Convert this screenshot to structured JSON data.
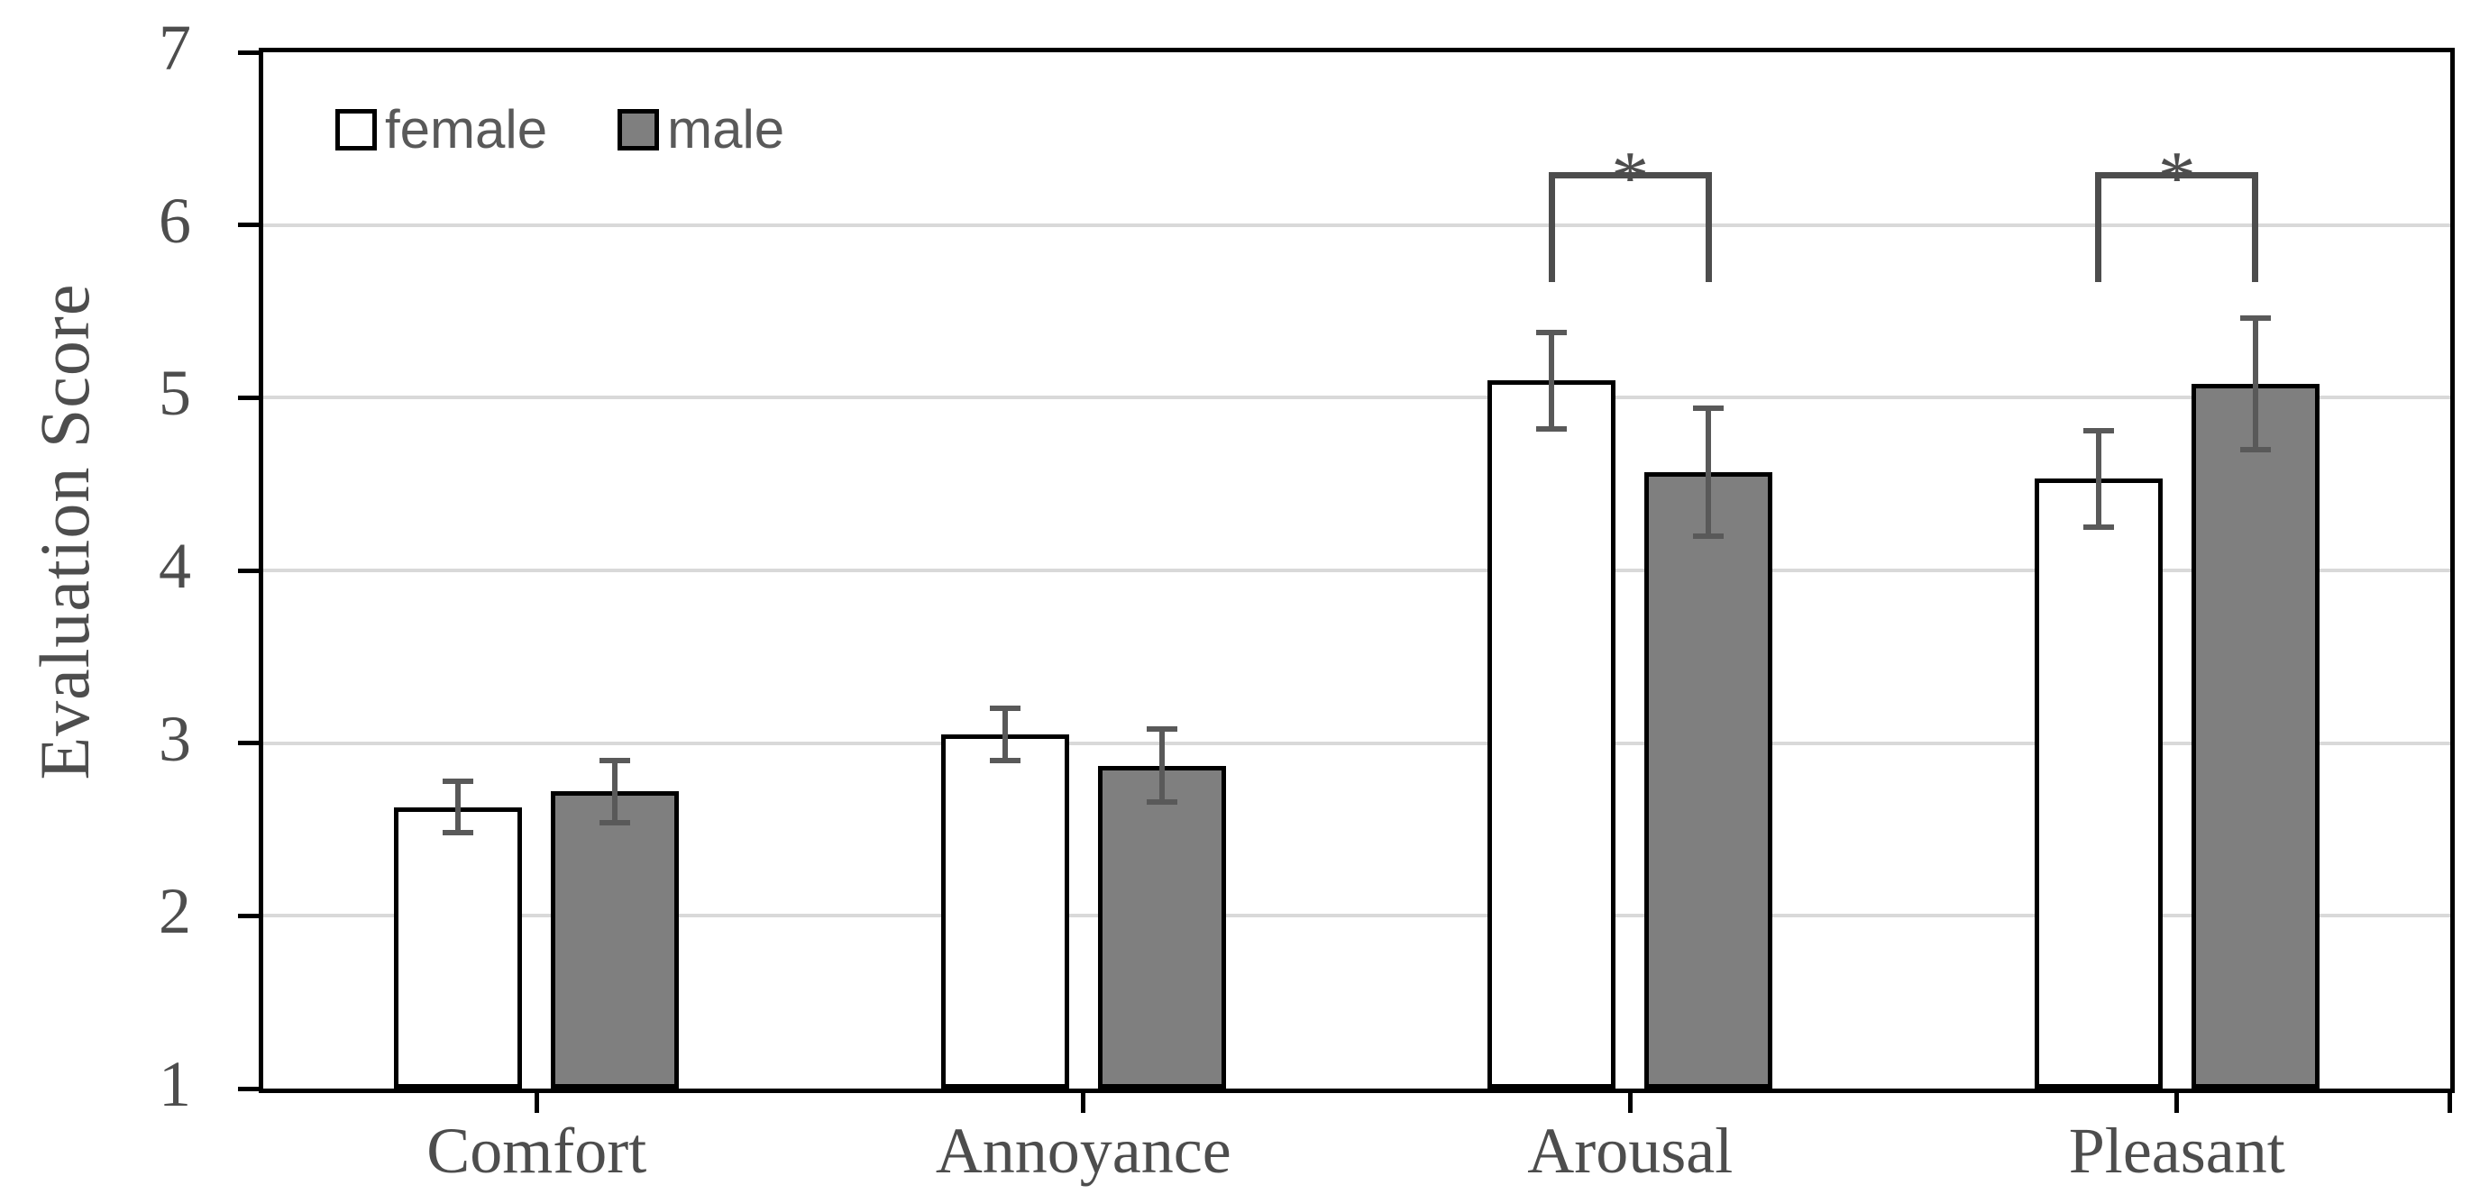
{
  "chart_data": {
    "type": "bar",
    "title": "",
    "xlabel": "",
    "ylabel": "Evaluation Score",
    "categories": [
      "Comfort",
      "Annoyance",
      "Arousal",
      "Pleasant"
    ],
    "series": [
      {
        "name": "female",
        "values": [
          2.63,
          3.05,
          5.1,
          4.53
        ],
        "errors": [
          0.15,
          0.15,
          0.28,
          0.28
        ],
        "fill": "#ffffff"
      },
      {
        "name": "male",
        "values": [
          2.72,
          2.87,
          4.57,
          5.08
        ],
        "errors": [
          0.18,
          0.21,
          0.37,
          0.38
        ],
        "fill": "#7f7f7f"
      }
    ],
    "ylim": [
      1,
      7
    ],
    "yticks": [
      1,
      2,
      3,
      4,
      5,
      6,
      7
    ],
    "grid": true,
    "legend_position": "top-left-inside",
    "significance": [
      {
        "category": "Arousal",
        "label": "*",
        "bracket_top": 6.27,
        "bracket_bottom": 5.67
      },
      {
        "category": "Pleasant",
        "label": "*",
        "bracket_top": 6.27,
        "bracket_bottom": 5.67
      }
    ],
    "colors": {
      "axis": "#000000",
      "bar_border": "#000000",
      "gridline": "#d9d9d9",
      "error_bar": "#595959",
      "bracket": "#4d4d4d",
      "tick_text": "#4d4d4d",
      "legend_text": "#595959",
      "background": "#ffffff"
    }
  }
}
